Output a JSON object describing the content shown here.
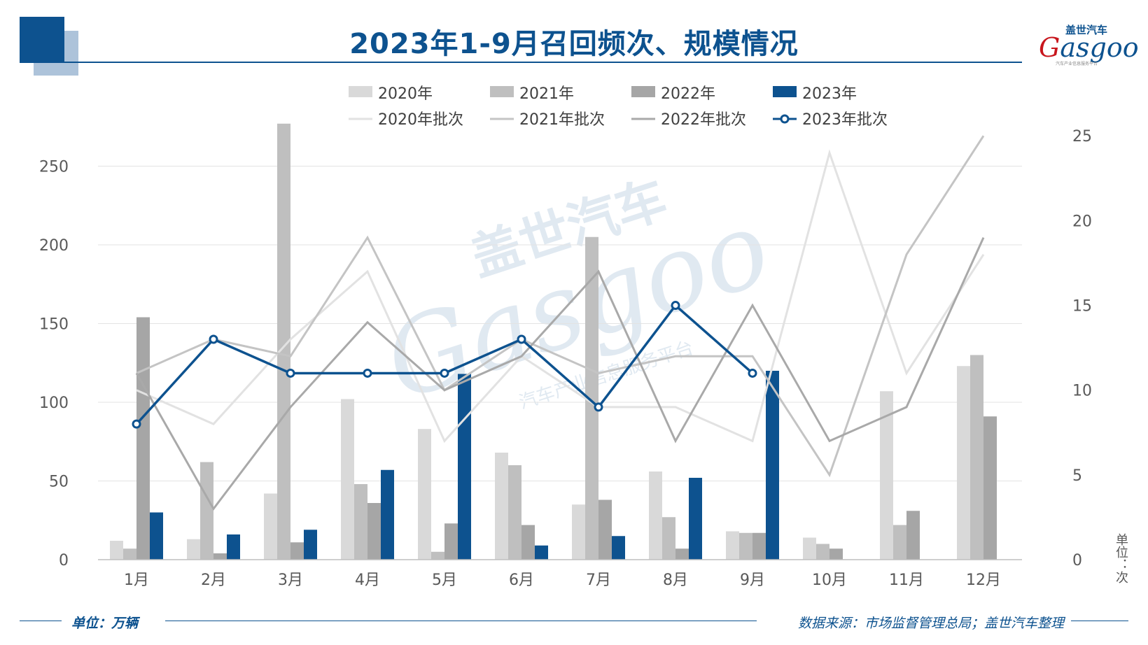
{
  "title": "2023年1-9月召回频次、规模情况",
  "logo": {
    "cn": "盖世汽车",
    "en_first": "G",
    "en_rest": "asgoo",
    "sub": "汽车产业信息服务平台"
  },
  "watermark": {
    "cn": "盖世汽车",
    "en": "Gasgoo",
    "sub": "汽车产业信息服务平台"
  },
  "footer": {
    "unit_left": "单位：万辆",
    "source": "数据来源：市场监督管理总局；盖世汽车整理"
  },
  "colors": {
    "c2020": "#d9d9d9",
    "c2021": "#bfbfbf",
    "c2022": "#a6a6a6",
    "c2023": "#0d528f"
  },
  "chart_data": {
    "type": "bar",
    "categories": [
      "1月",
      "2月",
      "3月",
      "4月",
      "5月",
      "6月",
      "7月",
      "8月",
      "9月",
      "10月",
      "11月",
      "12月"
    ],
    "y_left": {
      "ticks": [
        "0",
        "50",
        "100",
        "150",
        "200",
        "250"
      ],
      "lim": [
        0,
        280
      ]
    },
    "y_right": {
      "ticks": [
        "0",
        "5",
        "10",
        "15",
        "20",
        "25"
      ],
      "lim": [
        0,
        26
      ],
      "label": "单位：次"
    },
    "legend": "top",
    "grid": true,
    "bar_series": [
      {
        "name": "2020年",
        "values": [
          12,
          13,
          42,
          102,
          83,
          68,
          35,
          56,
          18,
          14,
          107,
          123
        ]
      },
      {
        "name": "2021年",
        "values": [
          7,
          62,
          277,
          48,
          5,
          60,
          205,
          27,
          17,
          10,
          22,
          130
        ]
      },
      {
        "name": "2022年",
        "values": [
          154,
          4,
          11,
          36,
          23,
          22,
          38,
          7,
          17,
          7,
          31,
          91
        ]
      },
      {
        "name": "2023年",
        "values": [
          30,
          16,
          19,
          57,
          118,
          9,
          15,
          52,
          120,
          null,
          null,
          null
        ]
      }
    ],
    "line_series": [
      {
        "name": "2020年批次",
        "values": [
          10,
          8,
          13,
          17,
          7,
          12,
          9,
          9,
          7,
          24,
          11,
          18
        ]
      },
      {
        "name": "2021年批次",
        "values": [
          11,
          13,
          12,
          19,
          10,
          13,
          11,
          12,
          12,
          5,
          18,
          25
        ]
      },
      {
        "name": "2022年批次",
        "values": [
          11,
          3,
          9,
          14,
          10,
          12,
          17,
          7,
          15,
          7,
          9,
          19
        ]
      },
      {
        "name": "2023年批次",
        "values": [
          8,
          13,
          11,
          11,
          11,
          13,
          9,
          15,
          11,
          null,
          null,
          null
        ]
      }
    ]
  }
}
